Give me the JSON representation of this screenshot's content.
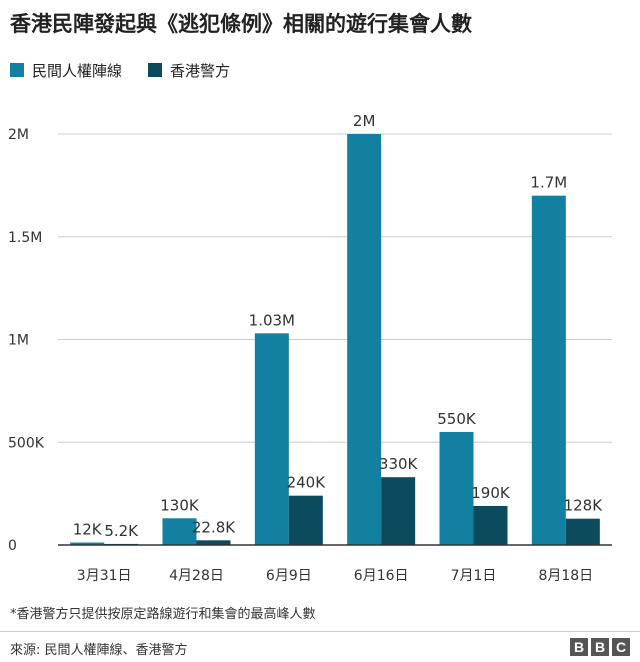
{
  "title": "香港民陣發起與《逃犯條例》相關的遊行集會人數",
  "legend": [
    {
      "label": "民間人權陣線",
      "color": "#1380a1"
    },
    {
      "label": "香港警方",
      "color": "#0c4a5e"
    }
  ],
  "chart_data": {
    "type": "bar",
    "title": "香港民陣發起與《逃犯條例》相關的遊行集會人數",
    "categories": [
      "3月31日",
      "4月28日",
      "6月9日",
      "6月16日",
      "7月1日",
      "8月18日"
    ],
    "series": [
      {
        "name": "民間人權陣線",
        "color": "#1380a1",
        "values": [
          12000,
          130000,
          1030000,
          2000000,
          550000,
          1700000
        ],
        "labels": [
          "12K",
          "130K",
          "1.03M",
          "2M",
          "550K",
          "1.7M"
        ]
      },
      {
        "name": "香港警方",
        "color": "#0c4a5e",
        "values": [
          5200,
          22800,
          240000,
          330000,
          190000,
          128000
        ],
        "labels": [
          "5.2K",
          "22.8K",
          "240K",
          "330K",
          "190K",
          "128K"
        ]
      }
    ],
    "ylim": [
      0,
      2000000
    ],
    "yticks": [
      0,
      500000,
      1000000,
      1500000,
      2000000
    ],
    "ytick_labels": [
      "0",
      "500K",
      "1M",
      "1.5M",
      "2M"
    ],
    "xlabel": "",
    "ylabel": "",
    "grid": true,
    "legend_position": "top-left"
  },
  "footnote": "*香港警方只提供按原定路線遊行和集會的最高峰人數",
  "source": "來源: 民間人權陣線、香港警方",
  "brand": [
    "B",
    "B",
    "C"
  ]
}
